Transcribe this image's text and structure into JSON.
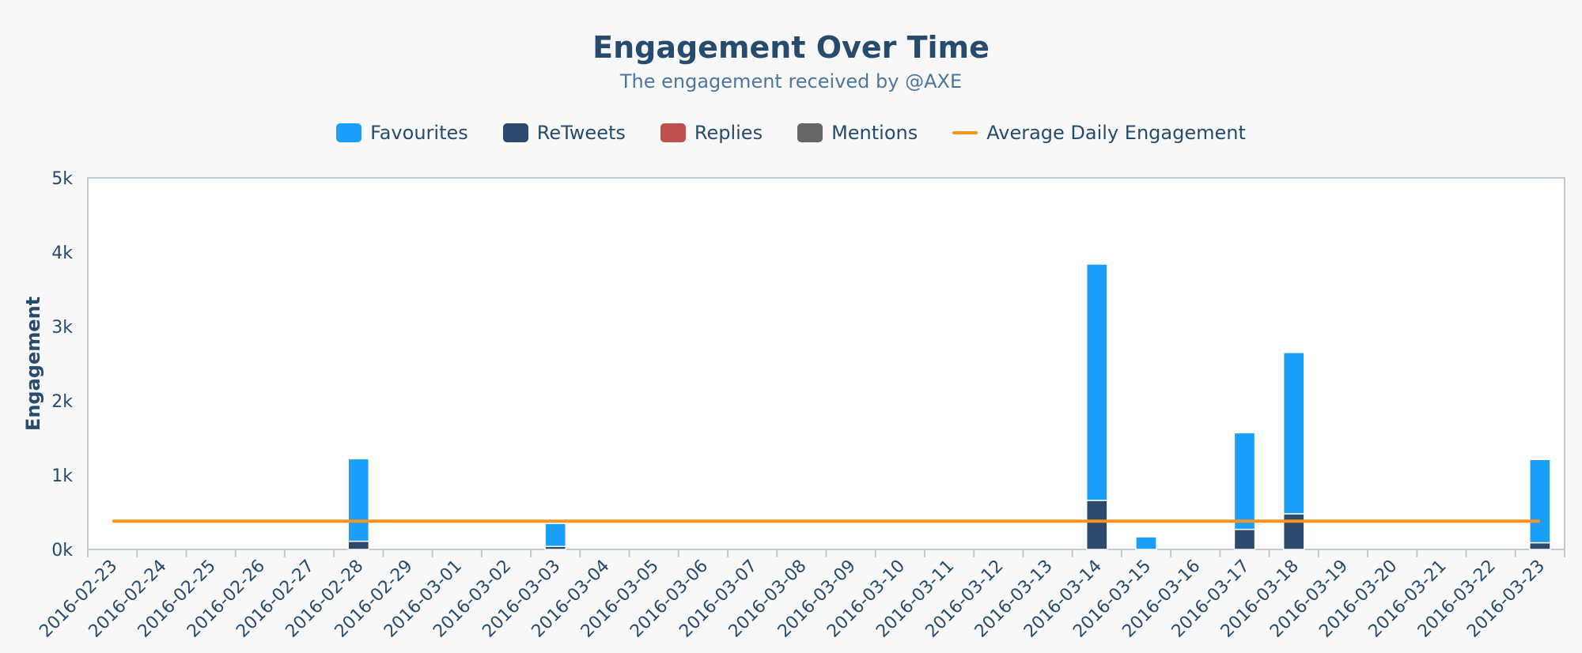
{
  "chart_data": {
    "type": "bar",
    "title": "Engagement Over Time",
    "subtitle": "The engagement received by @AXE",
    "ylabel": "Engagement",
    "ylim": [
      0,
      5000
    ],
    "yticks": [
      0,
      1000,
      2000,
      3000,
      4000,
      5000
    ],
    "ytick_labels": [
      "0k",
      "1k",
      "2k",
      "3k",
      "4k",
      "5k"
    ],
    "stacked": true,
    "legend_position": "top-center",
    "categories": [
      "2016-02-23",
      "2016-02-24",
      "2016-02-25",
      "2016-02-26",
      "2016-02-27",
      "2016-02-28",
      "2016-02-29",
      "2016-03-01",
      "2016-03-02",
      "2016-03-03",
      "2016-03-04",
      "2016-03-05",
      "2016-03-06",
      "2016-03-07",
      "2016-03-08",
      "2016-03-09",
      "2016-03-10",
      "2016-03-11",
      "2016-03-12",
      "2016-03-13",
      "2016-03-14",
      "2016-03-15",
      "2016-03-16",
      "2016-03-17",
      "2016-03-18",
      "2016-03-19",
      "2016-03-20",
      "2016-03-21",
      "2016-03-22",
      "2016-03-23"
    ],
    "series": [
      {
        "name": "Favourites",
        "color": "#1a9ef8",
        "type": "bar",
        "values": [
          0,
          0,
          0,
          0,
          0,
          1110,
          0,
          0,
          0,
          310,
          0,
          0,
          0,
          0,
          0,
          0,
          0,
          0,
          0,
          0,
          3180,
          170,
          0,
          1300,
          2170,
          0,
          0,
          0,
          0,
          1120
        ]
      },
      {
        "name": "ReTweets",
        "color": "#2b4a6e",
        "type": "bar",
        "values": [
          0,
          0,
          0,
          0,
          0,
          110,
          0,
          0,
          0,
          40,
          0,
          0,
          0,
          0,
          0,
          0,
          0,
          0,
          0,
          0,
          660,
          0,
          0,
          270,
          480,
          0,
          0,
          0,
          0,
          90
        ]
      },
      {
        "name": "Replies",
        "color": "#c0504d",
        "type": "bar",
        "values": [
          0,
          0,
          0,
          0,
          0,
          0,
          0,
          0,
          0,
          0,
          0,
          0,
          0,
          0,
          0,
          0,
          0,
          0,
          0,
          0,
          0,
          0,
          0,
          0,
          0,
          0,
          0,
          0,
          0,
          0
        ]
      },
      {
        "name": "Mentions",
        "color": "#666666",
        "type": "bar",
        "values": [
          0,
          0,
          0,
          0,
          0,
          0,
          0,
          0,
          0,
          0,
          0,
          0,
          0,
          0,
          0,
          0,
          0,
          0,
          0,
          0,
          0,
          0,
          0,
          0,
          0,
          0,
          0,
          0,
          0,
          0
        ]
      },
      {
        "name": "Average Daily Engagement",
        "color": "#f7931e",
        "type": "line",
        "value": 380
      }
    ]
  }
}
